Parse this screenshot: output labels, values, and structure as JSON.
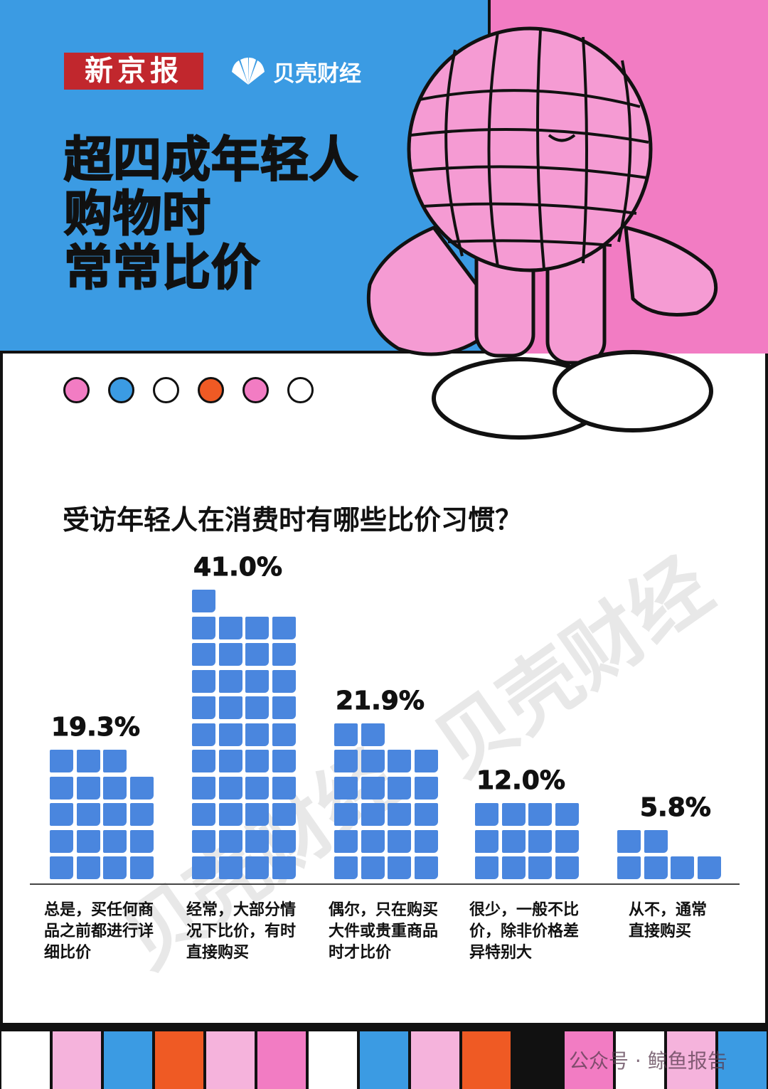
{
  "header": {
    "logo_xjb": "新京报",
    "logo_beike": "贝壳财经",
    "title_lines": [
      "超四成年轻人",
      "购物时",
      "常常比价"
    ]
  },
  "decor": {
    "dots": [
      "#f27cc3",
      "#3b9be3",
      "#ffffff",
      "#ef5a24",
      "#f27cc3",
      "#ffffff"
    ],
    "strip": [
      "#ffffff",
      "#f5b3dc",
      "#3b9be3",
      "#ef5a24",
      "#f5b3dc",
      "#f27cc3",
      "#ffffff",
      "#3b9be3",
      "#f5b3dc",
      "#ef5a24",
      "#111111",
      "#f27cc3",
      "#ffffff",
      "#f5b3dc",
      "#3b9be3"
    ],
    "watermark": "贝壳财经",
    "source_mark": "公众号 · 鲸鱼报告"
  },
  "chart_data": {
    "type": "bar",
    "style": "pictogram squares",
    "title": "受访年轻人在消费时有哪些比价习惯？",
    "categories": [
      "总是，买任何商品之前都进行详细比价",
      "经常，大部分情况下比价，有时直接购买",
      "偶尔，只在购买大件或贵重商品时才比价",
      "很少，一般不比价，除非价格差异特别大",
      "从不，通常直接购买"
    ],
    "category_lines": [
      [
        "总是，买任何商",
        "品之前都进行详",
        "细比价"
      ],
      [
        "经常，大部分情",
        "况下比价，有时",
        "直接购买"
      ],
      [
        "偶尔，只在购买",
        "大件或贵重商品",
        "时才比价"
      ],
      [
        "很少，一般不比",
        "价，除非价格差",
        "异特别大"
      ],
      [
        "从不，通常",
        "直接购买"
      ]
    ],
    "values": [
      19.3,
      41.0,
      21.9,
      12.0,
      5.8
    ],
    "labels": [
      "19.3%",
      "41.0%",
      "21.9%",
      "12.0%",
      "5.8%"
    ],
    "unit": "%",
    "color": "#4a86de"
  }
}
